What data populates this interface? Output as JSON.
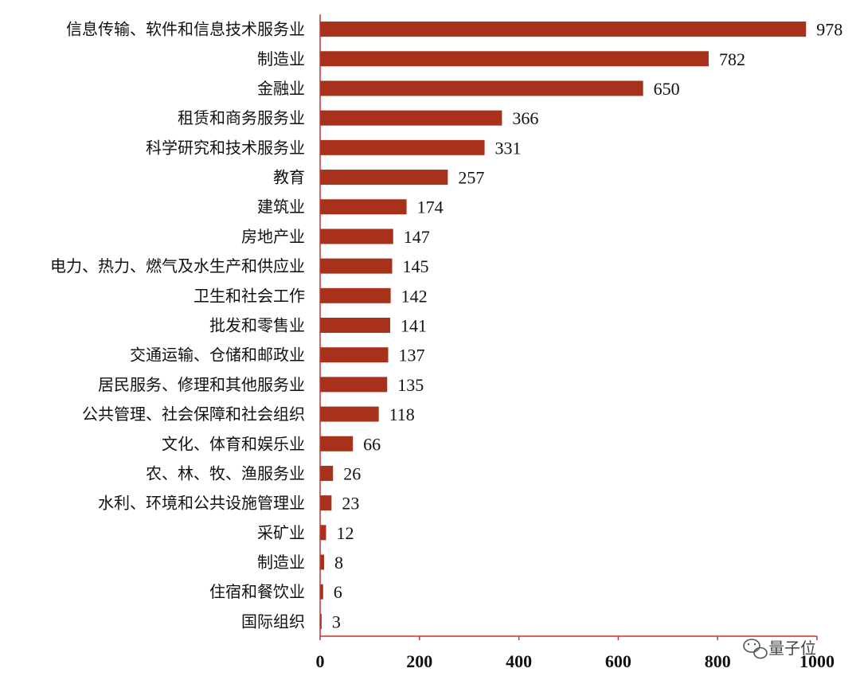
{
  "chart_data": {
    "type": "bar",
    "orientation": "horizontal",
    "categories": [
      "信息传输、软件和信息技术服务业",
      "制造业",
      "金融业",
      "租赁和商务服务业",
      "科学研究和技术服务业",
      "教育",
      "建筑业",
      "房地产业",
      "电力、热力、燃气及水生产和供应业",
      "卫生和社会工作",
      "批发和零售业",
      "交通运输、仓储和邮政业",
      "居民服务、修理和其他服务业",
      "公共管理、社会保障和社会组织",
      "文化、体育和娱乐业",
      "农、林、牧、渔服务业",
      "水利、环境和公共设施管理业",
      "采矿业",
      "制造业",
      "住宿和餐饮业",
      "国际组织"
    ],
    "values": [
      978,
      782,
      650,
      366,
      331,
      257,
      174,
      147,
      145,
      142,
      141,
      137,
      135,
      118,
      66,
      26,
      23,
      12,
      8,
      6,
      3
    ],
    "xlim": [
      0,
      1000
    ],
    "xticks": [
      "0",
      "200",
      "400",
      "600",
      "800",
      "1000"
    ],
    "grid": false,
    "bar_color": "#a8311c",
    "axis_color": "#c0392b",
    "data_labels": true
  },
  "watermark": {
    "text": "量子位",
    "icon": "wechat-icon"
  }
}
